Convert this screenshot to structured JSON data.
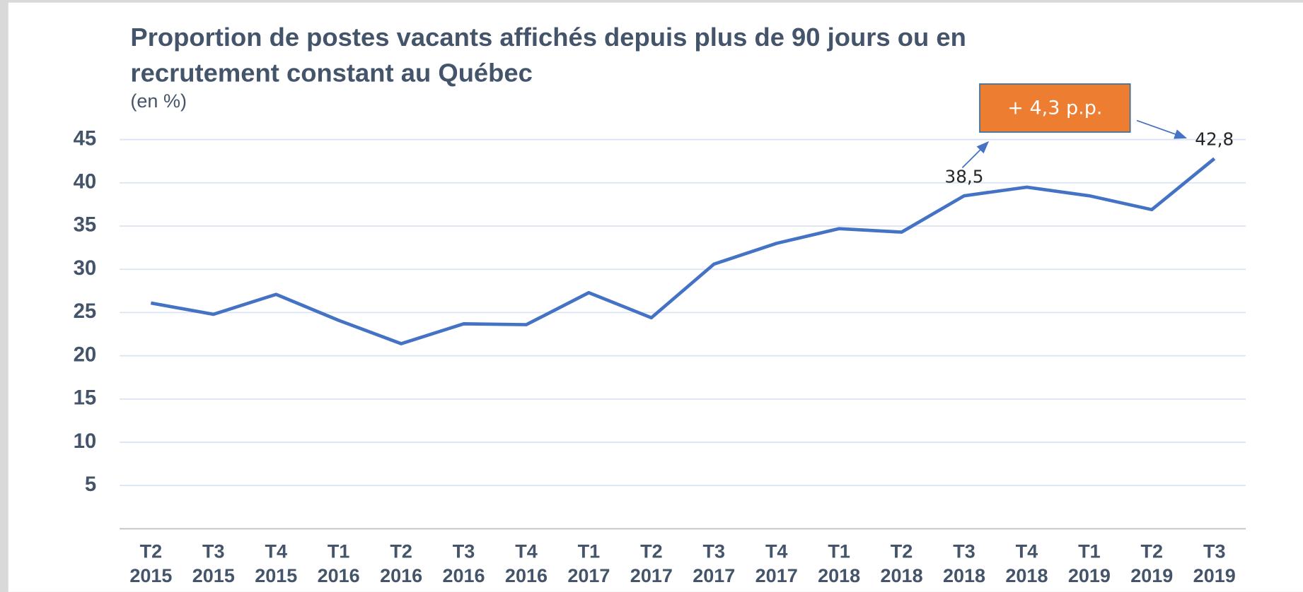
{
  "chart_data": {
    "type": "line",
    "title": [
      "Proportion de postes vacants affichés depuis plus de 90 jours ou en",
      "recrutement constant au Québec"
    ],
    "subtitle": "(en %)",
    "annotation": "+ 4,3 p.p.",
    "categories": [
      [
        "T2",
        "2015"
      ],
      [
        "T3",
        "2015"
      ],
      [
        "T4",
        "2015"
      ],
      [
        "T1",
        "2016"
      ],
      [
        "T2",
        "2016"
      ],
      [
        "T3",
        "2016"
      ],
      [
        "T4",
        "2016"
      ],
      [
        "T1",
        "2017"
      ],
      [
        "T2",
        "2017"
      ],
      [
        "T3",
        "2017"
      ],
      [
        "T4",
        "2017"
      ],
      [
        "T1",
        "2018"
      ],
      [
        "T2",
        "2018"
      ],
      [
        "T3",
        "2018"
      ],
      [
        "T4",
        "2018"
      ],
      [
        "T1",
        "2019"
      ],
      [
        "T2",
        "2019"
      ],
      [
        "T3",
        "2019"
      ]
    ],
    "series": [
      {
        "name": "Proportion",
        "color": "#4472c4",
        "values": [
          26.1,
          24.8,
          27.1,
          24.1,
          21.4,
          23.7,
          23.6,
          27.3,
          24.4,
          30.6,
          33.0,
          34.7,
          34.3,
          38.5,
          39.5,
          38.5,
          36.9,
          42.8
        ],
        "value_labels": [
          null,
          null,
          null,
          null,
          null,
          null,
          null,
          null,
          null,
          null,
          null,
          null,
          null,
          "38,5",
          null,
          null,
          null,
          "42,8"
        ]
      }
    ],
    "ylim": [
      0,
      45
    ],
    "yticks": [
      5,
      10,
      15,
      20,
      25,
      30,
      35,
      40,
      45
    ],
    "grid": true
  }
}
